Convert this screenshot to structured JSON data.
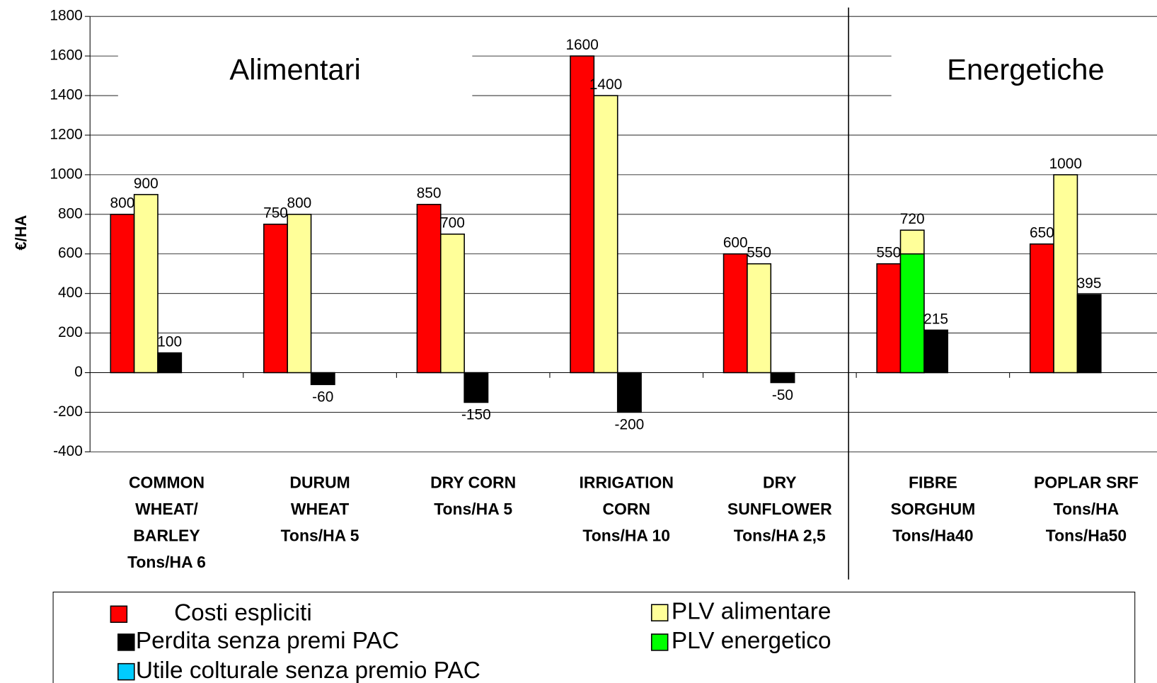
{
  "chart_data": {
    "type": "bar",
    "title_left": "Alimentari",
    "title_right": "Energetiche",
    "ylabel": "€/HA",
    "categories": [
      [
        "COMMON",
        "WHEAT/",
        "BARLEY",
        "Tons/HA 6"
      ],
      [
        "DURUM",
        "WHEAT",
        "Tons/HA 5"
      ],
      [
        "DRY CORN",
        "Tons/HA 5"
      ],
      [
        "IRRIGATION",
        "CORN",
        "Tons/HA 10"
      ],
      [
        "DRY",
        "SUNFLOWER",
        "Tons/HA 2,5"
      ],
      [
        "FIBRE",
        "SORGHUM",
        "Tons/Ha40"
      ],
      [
        "POPLAR SRF",
        "Tons/HA",
        "Tons/Ha50"
      ]
    ],
    "series": [
      {
        "name": "Costi espliciti",
        "color": "#ff0000",
        "values": [
          800,
          750,
          850,
          1600,
          600,
          550,
          650
        ]
      },
      {
        "name": "PLV alimentare",
        "color": "#ffff99",
        "values": [
          900,
          800,
          700,
          1400,
          550,
          720,
          1000
        ]
      },
      {
        "name": "Perdita senza premi PAC",
        "color": "#000000",
        "values": [
          100,
          -60,
          -150,
          -200,
          -50,
          215,
          395
        ]
      },
      {
        "name": "PLV energetico",
        "color": "#00ff00",
        "values": [
          null,
          null,
          null,
          null,
          null,
          600,
          null
        ]
      },
      {
        "name": "Utile colturale senza premio PAC",
        "color": "#00ccff",
        "values": [
          null,
          null,
          null,
          null,
          null,
          null,
          null
        ]
      }
    ],
    "ylim": [
      -400,
      1800
    ],
    "yticks": [
      -400,
      -200,
      0,
      200,
      400,
      600,
      800,
      1000,
      1200,
      1400,
      1600,
      1800
    ],
    "grid": true
  }
}
